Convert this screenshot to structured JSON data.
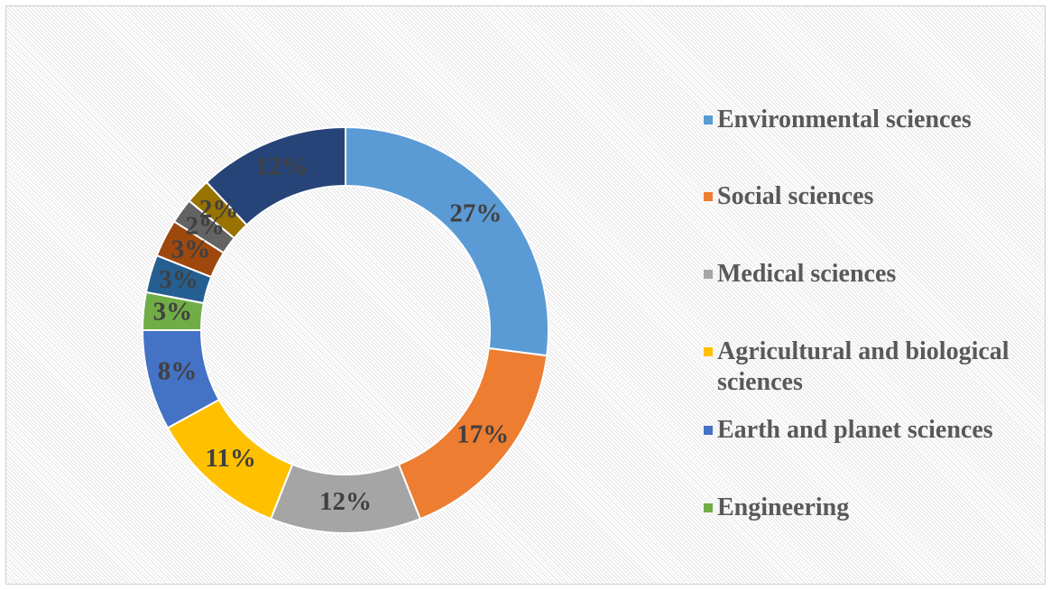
{
  "chart_data": {
    "type": "pie",
    "categories": [
      "Environmental sciences",
      "Social sciences",
      "Medical sciences",
      "Agricultural and biological sciences",
      "Earth and planet sciences",
      "Engineering",
      null,
      null,
      null,
      null,
      null
    ],
    "values": [
      27,
      17,
      12,
      11,
      8,
      3,
      3,
      3,
      2,
      2,
      12
    ],
    "value_labels": [
      "27%",
      "17%",
      "12%",
      "11%",
      "8%",
      "3%",
      "3%",
      "3%",
      "2%",
      "2%",
      "12%"
    ],
    "colors": [
      "#5b9bd5",
      "#ed7d31",
      "#a5a5a5",
      "#ffc000",
      "#4472c4",
      "#70ad47",
      "#255e91",
      "#9e480e",
      "#636363",
      "#997300",
      "#264478"
    ],
    "donut": true,
    "legend": "right"
  }
}
